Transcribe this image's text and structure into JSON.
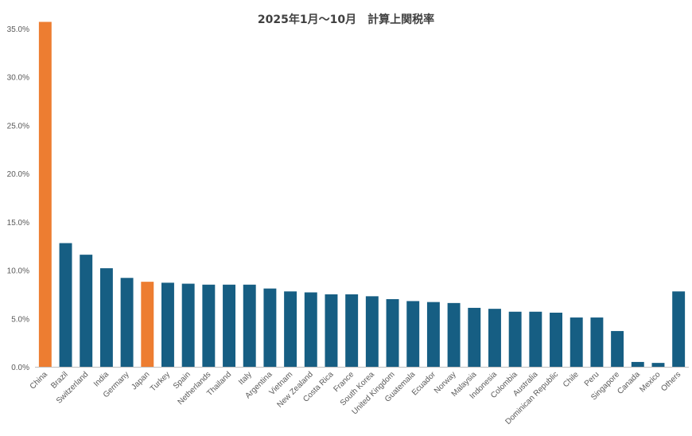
{
  "chart_data": {
    "type": "bar",
    "title": "2025年1月〜10月　計算上関税率",
    "categories": [
      "China",
      "Brazil",
      "Switzerland",
      "India",
      "Germany",
      "Japan",
      "Turkey",
      "Spain",
      "Netherlands",
      "Thailand",
      "Italy",
      "Argentina",
      "Vietnam",
      "New Zealand",
      "Costa Rica",
      "France",
      "South Korea",
      "United Kingdom",
      "Guatemala",
      "Ecuador",
      "Norway",
      "Malaysia",
      "Indonesia",
      "Colombia",
      "Australia",
      "Dominican Republic",
      "Chile",
      "Peru",
      "Singapore",
      "Canada",
      "Mexico",
      "Others"
    ],
    "values": [
      35.7,
      12.8,
      11.6,
      10.2,
      9.2,
      8.8,
      8.7,
      8.6,
      8.5,
      8.5,
      8.5,
      8.1,
      7.8,
      7.7,
      7.5,
      7.5,
      7.3,
      7.0,
      6.8,
      6.7,
      6.6,
      6.1,
      6.0,
      5.7,
      5.7,
      5.6,
      5.1,
      5.1,
      3.7,
      0.5,
      0.4,
      7.8
    ],
    "highlight": [
      "China",
      "Japan"
    ],
    "colors": {
      "default": "#165E83",
      "highlight": "#ED7D31",
      "axis": "#BFBFBF",
      "text": "#595959"
    },
    "ylim": [
      0,
      35
    ],
    "yticks": [
      "0.0%",
      "5.0%",
      "10.0%",
      "15.0%",
      "20.0%",
      "25.0%",
      "30.0%",
      "35.0%"
    ],
    "xlabel": "",
    "ylabel": "",
    "grid": false,
    "legend": "none"
  }
}
